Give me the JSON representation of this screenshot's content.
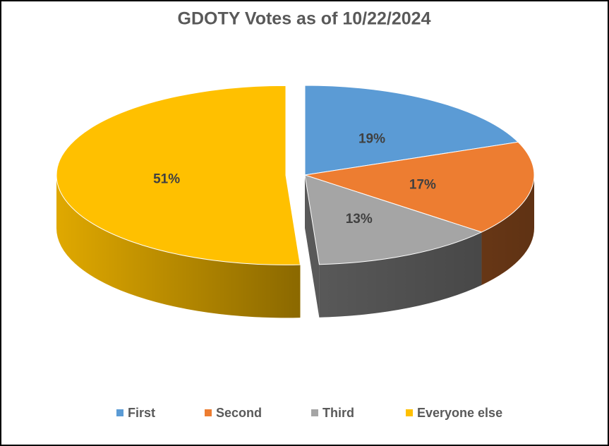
{
  "chart_data": {
    "type": "pie",
    "title": "GDOTY Votes as of 10/22/2024",
    "categories": [
      "First",
      "Second",
      "Third",
      "Everyone else"
    ],
    "values": [
      19,
      17,
      13,
      51
    ],
    "value_labels": [
      "19%",
      "17%",
      "13%",
      "51%"
    ],
    "colors": [
      "#5b9bd5",
      "#ed7d31",
      "#a5a5a5",
      "#ffc000"
    ]
  }
}
